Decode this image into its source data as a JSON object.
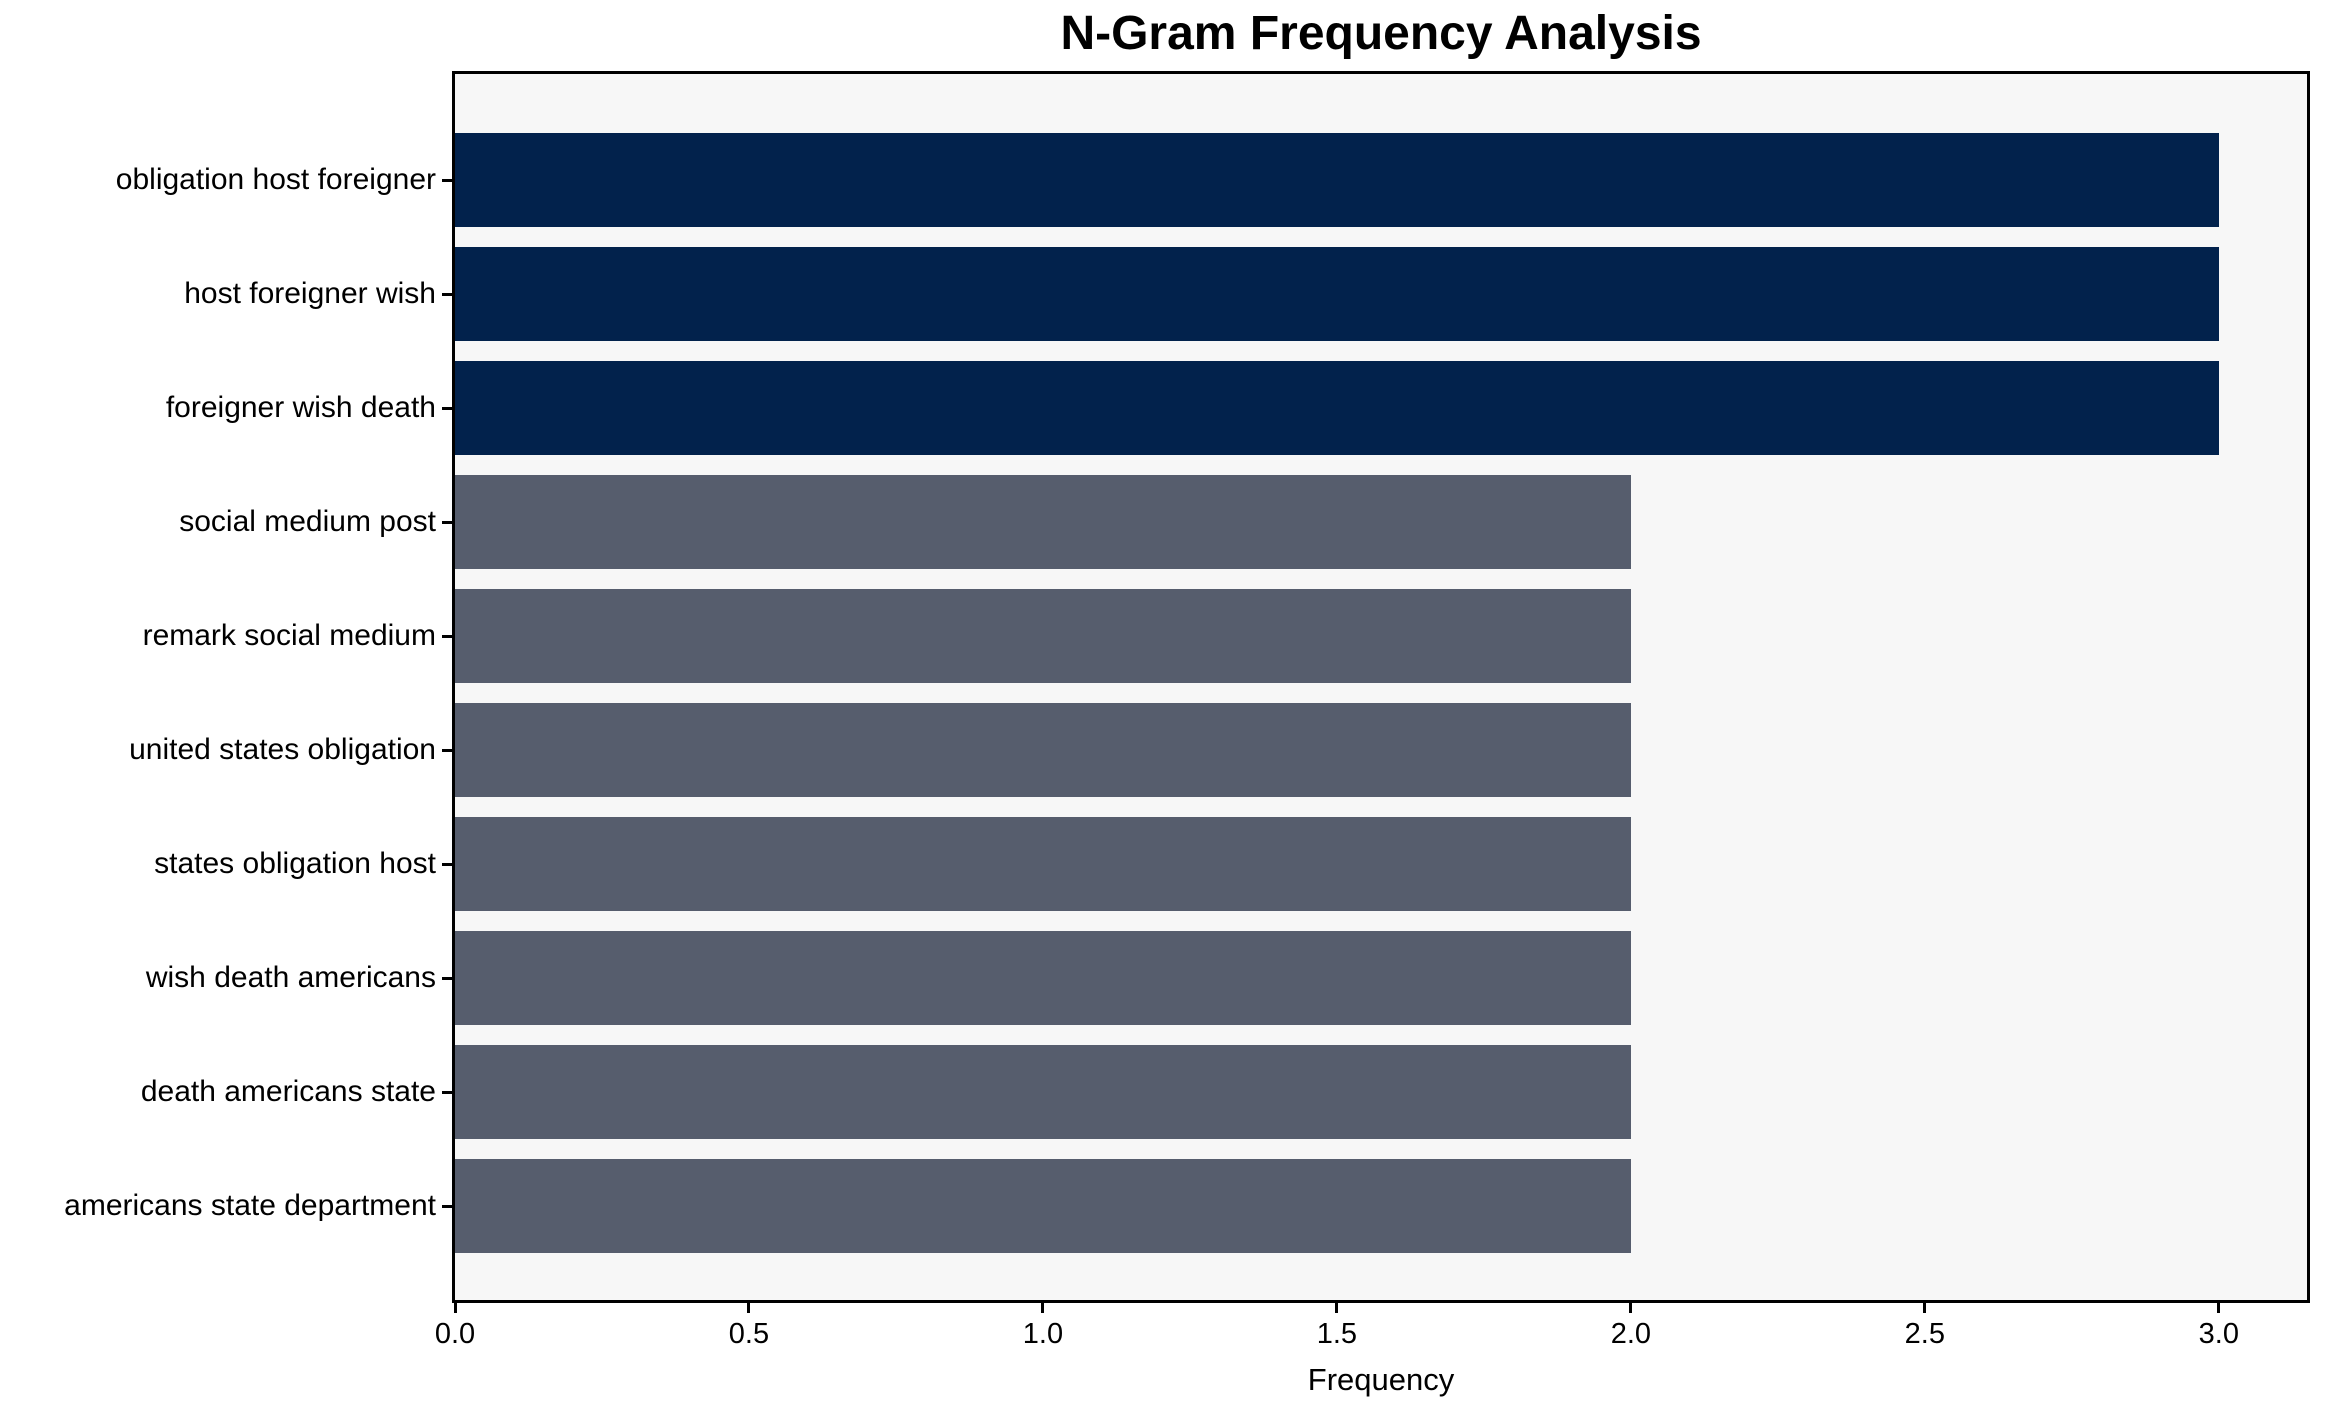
{
  "chart_data": {
    "type": "bar",
    "orientation": "horizontal",
    "title": "N-Gram Frequency Analysis",
    "xlabel": "Frequency",
    "ylabel": "",
    "categories": [
      "obligation host foreigner",
      "host foreigner wish",
      "foreigner wish death",
      "social medium post",
      "remark social medium",
      "united states obligation",
      "states obligation host",
      "wish death americans",
      "death americans state",
      "americans state department"
    ],
    "values": [
      3,
      3,
      3,
      2,
      2,
      2,
      2,
      2,
      2,
      2
    ],
    "bar_colors": [
      "#02224c",
      "#02224c",
      "#02224c",
      "#565d6d",
      "#565d6d",
      "#565d6d",
      "#565d6d",
      "#565d6d",
      "#565d6d",
      "#565d6d"
    ],
    "xlim": [
      0,
      3.15
    ],
    "xticks": [
      0,
      0.5,
      1,
      1.5,
      2,
      2.5,
      3
    ],
    "xtick_labels": [
      "0.0",
      "0.5",
      "1.0",
      "1.5",
      "2.0",
      "2.5",
      "3.0"
    ],
    "grid": false,
    "legend": false,
    "colors": {
      "highlight_bar": "#02224c",
      "regular_bar": "#565d6d",
      "plot_background": "#f7f7f7",
      "figure_background": "#ffffff",
      "axis": "#000000",
      "text": "#000000"
    }
  }
}
